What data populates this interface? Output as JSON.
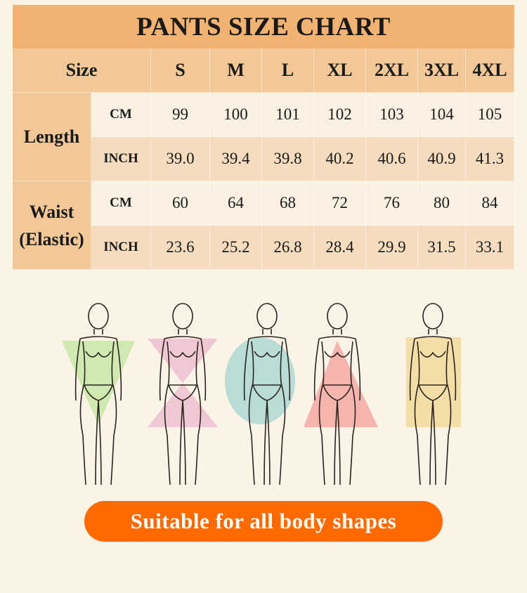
{
  "title": "PANTS SIZE CHART",
  "header": {
    "size_label": "Size",
    "sizes": [
      "S",
      "M",
      "L",
      "XL",
      "2XL",
      "3XL",
      "4XL"
    ]
  },
  "rows": [
    {
      "group": "Length",
      "unit": "CM",
      "values": [
        "99",
        "100",
        "101",
        "102",
        "103",
        "104",
        "105"
      ]
    },
    {
      "group": "Length",
      "unit": "INCH",
      "values": [
        "39.0",
        "39.4",
        "39.8",
        "40.2",
        "40.6",
        "40.9",
        "41.3"
      ]
    },
    {
      "group": "Waist (Elastic)",
      "unit": "CM",
      "values": [
        "60",
        "64",
        "68",
        "72",
        "76",
        "80",
        "84"
      ]
    },
    {
      "group": "Waist (Elastic)",
      "unit": "INCH",
      "values": [
        "23.6",
        "25.2",
        "26.8",
        "28.4",
        "29.9",
        "31.5",
        "33.1"
      ]
    }
  ],
  "groups": {
    "length": "Length",
    "waist_line1": "Waist",
    "waist_line2": "(Elastic)"
  },
  "body_shapes": [
    {
      "shape": "inverted-triangle",
      "color": "#cfe9b0"
    },
    {
      "shape": "hourglass",
      "color": "#f0c8d4"
    },
    {
      "shape": "oval",
      "color": "#b9ddd6"
    },
    {
      "shape": "triangle",
      "color": "#f6b4ae"
    },
    {
      "shape": "rectangle",
      "color": "#f4dea8"
    }
  ],
  "cta": "Suitable for all body shapes",
  "colors": {
    "title_bg": "#f2b272",
    "header_bg": "#f3c898",
    "cm_row": "#fbf1e2",
    "inch_row": "#f6dcbf",
    "cta_bg": "#ff6a00"
  }
}
